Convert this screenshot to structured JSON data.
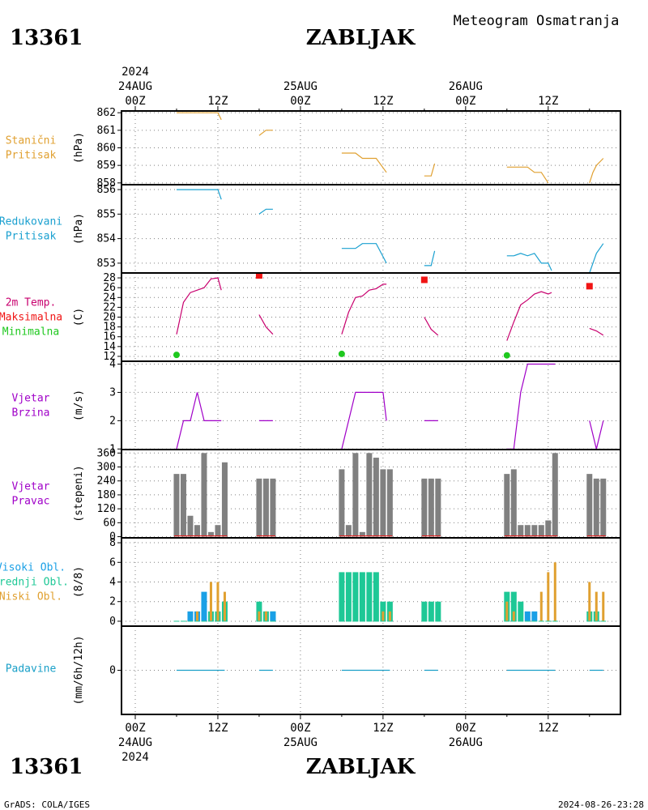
{
  "header": {
    "station_id": "13361",
    "station_name": "ZABLJAK",
    "subtitle": "Meteogram Osmatranja"
  },
  "footer": {
    "station_id": "13361",
    "station_name": "ZABLJAK",
    "credit": "GrADS: COLA/IGES",
    "timestamp": "2024-08-26-23:28"
  },
  "time_axis": {
    "year": "2024",
    "top_labels": [
      {
        "h": 0,
        "t": "00Z",
        "date": "24AUG"
      },
      {
        "h": 12,
        "t": "12Z"
      },
      {
        "h": 24,
        "t": "00Z",
        "date": "25AUG"
      },
      {
        "h": 36,
        "t": "12Z"
      },
      {
        "h": 48,
        "t": "00Z",
        "date": "26AUG"
      },
      {
        "h": 60,
        "t": "12Z"
      }
    ]
  },
  "colors": {
    "pressure": "#e0a030",
    "sea_pressure": "#1aa0d0",
    "temp": "#c8006e",
    "tmax": "#f01414",
    "tmin": "#1ec81e",
    "wind": "#a000c8",
    "wind_dir": "#808080",
    "wind_dir_zero": "#f01414",
    "cloud_high": "#1aa0e6",
    "cloud_mid": "#1ec896",
    "cloud_low": "#e0a030",
    "precip": "#1aa0c8",
    "grid": "#808080"
  },
  "chart_data": [
    {
      "type": "line",
      "key": "pressure",
      "label_lines": [
        "Stanični",
        "Pritisak"
      ],
      "label_color": "#e0a030",
      "ylabel": "(hPa)",
      "ylim": [
        857.9,
        862.1
      ],
      "yticks": [
        858,
        859,
        860,
        861,
        862
      ],
      "segments": [
        [
          [
            6,
            862
          ],
          [
            12,
            862
          ],
          [
            12.5,
            861.6
          ]
        ],
        [
          [
            18,
            860.7
          ],
          [
            19,
            861
          ],
          [
            20,
            861
          ]
        ],
        [
          [
            30,
            859.7
          ],
          [
            32,
            859.7
          ],
          [
            33,
            859.4
          ],
          [
            35,
            859.4
          ],
          [
            36.5,
            858.6
          ]
        ],
        [
          [
            42,
            858.4
          ],
          [
            43,
            858.4
          ],
          [
            43.5,
            859.1
          ]
        ],
        [
          [
            54,
            858.9
          ],
          [
            57,
            858.9
          ],
          [
            58,
            858.6
          ],
          [
            59,
            858.6
          ],
          [
            60,
            858
          ]
        ],
        [
          [
            66,
            858
          ],
          [
            66.5,
            858.6
          ],
          [
            67,
            859
          ],
          [
            68,
            859.4
          ]
        ]
      ]
    },
    {
      "type": "line",
      "key": "sea_pressure",
      "label_lines": [
        "Redukovani",
        "Pritisak"
      ],
      "label_color": "#1aa0d0",
      "ylabel": "(hPa)",
      "ylim": [
        852.6,
        856.2
      ],
      "yticks": [
        853,
        854,
        855,
        856
      ],
      "segments": [
        [
          [
            6,
            856
          ],
          [
            12,
            856
          ],
          [
            12.5,
            855.6
          ]
        ],
        [
          [
            18,
            855
          ],
          [
            19,
            855.2
          ],
          [
            20,
            855.2
          ]
        ],
        [
          [
            30,
            853.6
          ],
          [
            32,
            853.6
          ],
          [
            33,
            853.8
          ],
          [
            35,
            853.8
          ],
          [
            36.5,
            853
          ]
        ],
        [
          [
            42,
            852.9
          ],
          [
            43,
            852.9
          ],
          [
            43.5,
            853.5
          ]
        ],
        [
          [
            54,
            853.3
          ],
          [
            55,
            853.3
          ],
          [
            56,
            853.4
          ],
          [
            57,
            853.3
          ],
          [
            58,
            853.4
          ],
          [
            59,
            853
          ],
          [
            60,
            853
          ],
          [
            60.5,
            852.7
          ]
        ],
        [
          [
            66,
            852.6
          ],
          [
            66.5,
            853
          ],
          [
            67,
            853.4
          ],
          [
            68,
            853.8
          ]
        ]
      ]
    },
    {
      "type": "line",
      "key": "temp",
      "label_lines": [
        "2m Temp.",
        "Maksimalna",
        "Minimalna"
      ],
      "label_colors": [
        "#c8006e",
        "#f01414",
        "#1ec81e"
      ],
      "ylabel": "(C)",
      "ylim": [
        11,
        29
      ],
      "yticks": [
        12,
        14,
        16,
        18,
        20,
        22,
        24,
        26,
        28
      ],
      "segments": [
        [
          [
            6,
            16.5
          ],
          [
            7,
            23
          ],
          [
            8,
            25
          ],
          [
            9,
            25.5
          ],
          [
            10,
            26
          ],
          [
            11,
            27.8
          ],
          [
            12,
            28
          ],
          [
            12.5,
            25.5
          ]
        ],
        [
          [
            18,
            20.5
          ],
          [
            19,
            18
          ],
          [
            20,
            16.5
          ]
        ],
        [
          [
            30,
            16.5
          ],
          [
            31,
            21
          ],
          [
            32,
            24
          ],
          [
            33,
            24.3
          ],
          [
            34,
            25.5
          ],
          [
            35,
            25.8
          ],
          [
            36,
            26.7
          ],
          [
            36.5,
            26.7
          ]
        ],
        [
          [
            42,
            20
          ],
          [
            43,
            17.5
          ],
          [
            44,
            16.3
          ]
        ],
        [
          [
            54,
            15.2
          ],
          [
            55,
            19
          ],
          [
            56,
            22.5
          ],
          [
            57,
            23.5
          ],
          [
            58,
            24.7
          ],
          [
            59,
            25.2
          ],
          [
            60,
            24.7
          ],
          [
            60.5,
            25
          ]
        ],
        [
          [
            66,
            17.7
          ],
          [
            67,
            17.2
          ],
          [
            68,
            16.3
          ]
        ]
      ],
      "tmax": [
        [
          18,
          28.5
        ],
        [
          42,
          27.6
        ],
        [
          66,
          26.3
        ]
      ],
      "tmin": [
        [
          6,
          12.3
        ],
        [
          30,
          12.5
        ],
        [
          54,
          12.2
        ]
      ]
    },
    {
      "type": "line",
      "key": "wind",
      "label_lines": [
        "Vjetar",
        "Brzina"
      ],
      "label_color": "#a000c8",
      "ylabel": "(m/s)",
      "ylim": [
        0.98,
        4.1
      ],
      "yticks": [
        1,
        2,
        3,
        4
      ],
      "segments": [
        [
          [
            6,
            1
          ],
          [
            7,
            2
          ],
          [
            8,
            2
          ],
          [
            9,
            3
          ],
          [
            10,
            2
          ],
          [
            12,
            2
          ],
          [
            12.5,
            2
          ]
        ],
        [
          [
            18,
            2
          ],
          [
            20,
            2
          ]
        ],
        [
          [
            30,
            1
          ],
          [
            32,
            3
          ],
          [
            36,
            3
          ],
          [
            36.5,
            2
          ]
        ],
        [
          [
            42,
            2
          ],
          [
            44,
            2
          ]
        ],
        [
          [
            54,
            1
          ],
          [
            55,
            1
          ],
          [
            56,
            3
          ],
          [
            57,
            4
          ],
          [
            60,
            4
          ],
          [
            61,
            4
          ]
        ],
        [
          [
            66,
            2
          ],
          [
            67,
            1
          ],
          [
            68,
            2
          ]
        ]
      ]
    },
    {
      "type": "bar",
      "key": "wind_dir",
      "label_lines": [
        "Vjetar",
        "Pravac"
      ],
      "label_color": "#a000c8",
      "ylabel": "(stepeni)",
      "ylim": [
        -5,
        375
      ],
      "yticks": [
        0,
        60,
        120,
        180,
        240,
        300,
        360
      ],
      "bars": [
        [
          6,
          270
        ],
        [
          7,
          270
        ],
        [
          8,
          90
        ],
        [
          9,
          50
        ],
        [
          10,
          360
        ],
        [
          11,
          20
        ],
        [
          12,
          50
        ],
        [
          13,
          320
        ],
        [
          18,
          250
        ],
        [
          19,
          250
        ],
        [
          20,
          250
        ],
        [
          30,
          290
        ],
        [
          31,
          50
        ],
        [
          32,
          360
        ],
        [
          33,
          20
        ],
        [
          34,
          360
        ],
        [
          35,
          340
        ],
        [
          36,
          290
        ],
        [
          37,
          290
        ],
        [
          42,
          250
        ],
        [
          43,
          250
        ],
        [
          44,
          250
        ],
        [
          54,
          270
        ],
        [
          55,
          290
        ],
        [
          56,
          50
        ],
        [
          57,
          50
        ],
        [
          58,
          50
        ],
        [
          59,
          50
        ],
        [
          60,
          70
        ],
        [
          61,
          360
        ],
        [
          66,
          270
        ],
        [
          67,
          250
        ],
        [
          68,
          250
        ]
      ]
    },
    {
      "type": "cloud",
      "key": "clouds",
      "label_lines": [
        "Visoki Obl.",
        "Srednji Obl.",
        "Niski Obl."
      ],
      "label_colors": [
        "#1aa0e6",
        "#1ec896",
        "#e0a030"
      ],
      "ylabel": "(8/8)",
      "ylim": [
        -0.5,
        8.5
      ],
      "yticks": [
        0,
        2,
        4,
        6,
        8
      ],
      "bars": [
        [
          6,
          0,
          0,
          0
        ],
        [
          7,
          0,
          0,
          0
        ],
        [
          8,
          1,
          0,
          0
        ],
        [
          9,
          1,
          0,
          1
        ],
        [
          10,
          3,
          0,
          0
        ],
        [
          11,
          0,
          1,
          4
        ],
        [
          12,
          0,
          1,
          4
        ],
        [
          13,
          0,
          2,
          3
        ],
        [
          18,
          0,
          2,
          1
        ],
        [
          19,
          0,
          1,
          1
        ],
        [
          20,
          1,
          1,
          0
        ],
        [
          30,
          0,
          5,
          0
        ],
        [
          31,
          0,
          5,
          0
        ],
        [
          32,
          0,
          5,
          0
        ],
        [
          33,
          0,
          5,
          0
        ],
        [
          34,
          0,
          5,
          0
        ],
        [
          35,
          0,
          5,
          0
        ],
        [
          36,
          0,
          2,
          1
        ],
        [
          37,
          0,
          2,
          1
        ],
        [
          42,
          0,
          2,
          0
        ],
        [
          43,
          0,
          2,
          0
        ],
        [
          44,
          0,
          2,
          0
        ],
        [
          54,
          0,
          3,
          2
        ],
        [
          55,
          0,
          3,
          1
        ],
        [
          56,
          0,
          2,
          0
        ],
        [
          57,
          1,
          0,
          0
        ],
        [
          58,
          1,
          0,
          0
        ],
        [
          59,
          0,
          0,
          3
        ],
        [
          60,
          0,
          0,
          5
        ],
        [
          61,
          0,
          0,
          6
        ],
        [
          66,
          0,
          1,
          4
        ],
        [
          67,
          0,
          1,
          3
        ],
        [
          68,
          0,
          0,
          3
        ]
      ]
    },
    {
      "type": "line",
      "key": "precip",
      "label_lines": [
        "Padavine"
      ],
      "label_color": "#1aa0c8",
      "ylabel": "(mm/6h/12h)",
      "ylim": [
        -1,
        1
      ],
      "yticks": [
        0
      ],
      "segments": [
        [
          [
            6,
            0
          ],
          [
            13,
            0
          ]
        ],
        [
          [
            18,
            0
          ],
          [
            20,
            0
          ]
        ],
        [
          [
            30,
            0
          ],
          [
            37,
            0
          ]
        ],
        [
          [
            42,
            0
          ],
          [
            44,
            0
          ]
        ],
        [
          [
            54,
            0
          ],
          [
            61,
            0
          ]
        ],
        [
          [
            66,
            0
          ],
          [
            68,
            0
          ]
        ]
      ]
    }
  ]
}
